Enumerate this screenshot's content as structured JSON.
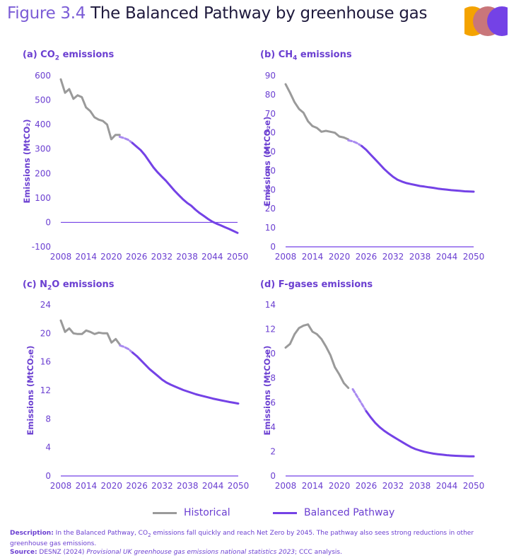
{
  "figure": {
    "number": "Figure 3.4",
    "title": "The Balanced Pathway by greenhouse gas"
  },
  "legend": {
    "historical": "Historical",
    "pathway": "Balanced Pathway"
  },
  "description": {
    "desc_label": "Description:",
    "desc_text_1": " In the Balanced Pathway, CO",
    "desc_sub": "2",
    "desc_text_2": " emissions fall quickly and reach Net Zero by 2045. The pathway also sees strong reductions in other greenhouse gas emissions.",
    "source_label": "Source:",
    "source_text_1": " DESNZ (2024) ",
    "source_italic": "Provisional UK greenhouse gas emissions national statistics 2023",
    "source_text_2": "; CCC analysis."
  },
  "colors": {
    "historical": "#9a9a9a",
    "pathway": "#7442e6",
    "pathway_light": "#a98af0",
    "axis": "#7442e6",
    "logo_orange": "#f4a300",
    "logo_rose": "#c9767a",
    "logo_purple": "#7442e6"
  },
  "chart_data": [
    {
      "type": "line",
      "id": "co2",
      "title_prefix": "(a) CO",
      "title_sub": "2",
      "title_suffix": " emissions",
      "ylabel": "Emissions (MtCO₂)",
      "ylim": [
        -100,
        600
      ],
      "yticks": [
        -100,
        0,
        100,
        200,
        300,
        400,
        500,
        600
      ],
      "xlim": [
        2008,
        2050
      ],
      "xticks": [
        2008,
        2014,
        2020,
        2026,
        2032,
        2038,
        2044,
        2050
      ],
      "grid": false,
      "series": [
        {
          "name": "Historical",
          "x": [
            2008,
            2009,
            2010,
            2011,
            2012,
            2013,
            2014,
            2015,
            2016,
            2017,
            2018,
            2019,
            2020,
            2021,
            2022
          ],
          "y": [
            585,
            530,
            545,
            505,
            520,
            512,
            470,
            455,
            430,
            420,
            415,
            400,
            340,
            358,
            358
          ]
        },
        {
          "name": "Balanced Pathway",
          "x": [
            2022,
            2023,
            2024,
            2025,
            2026,
            2027,
            2028,
            2029,
            2030,
            2031,
            2032,
            2033,
            2034,
            2035,
            2036,
            2037,
            2038,
            2039,
            2040,
            2041,
            2042,
            2043,
            2044,
            2045,
            2046,
            2047,
            2048,
            2049,
            2050
          ],
          "y": [
            350,
            345,
            338,
            325,
            310,
            295,
            275,
            250,
            225,
            205,
            187,
            170,
            150,
            130,
            112,
            95,
            80,
            68,
            52,
            38,
            26,
            14,
            3,
            -5,
            -12,
            -20,
            -27,
            -35,
            -43
          ]
        }
      ]
    },
    {
      "type": "line",
      "id": "ch4",
      "title_prefix": "(b) CH",
      "title_sub": "4",
      "title_suffix": " emissions",
      "ylabel": "Emissions (MtCO₂e)",
      "ylim": [
        0,
        90
      ],
      "yticks": [
        0,
        10,
        20,
        30,
        40,
        50,
        60,
        70,
        80,
        90
      ],
      "xlim": [
        2008,
        2050
      ],
      "xticks": [
        2008,
        2014,
        2020,
        2026,
        2032,
        2038,
        2044,
        2050
      ],
      "grid": false,
      "series": [
        {
          "name": "Historical",
          "x": [
            2008,
            2009,
            2010,
            2011,
            2012,
            2013,
            2014,
            2015,
            2016,
            2017,
            2018,
            2019,
            2020,
            2021,
            2022
          ],
          "y": [
            85.5,
            81,
            76,
            72.5,
            70.5,
            66,
            63.5,
            62.5,
            60.5,
            61,
            60.5,
            60,
            58,
            57.5,
            56.5
          ]
        },
        {
          "name": "Balanced Pathway",
          "x": [
            2022,
            2023,
            2024,
            2025,
            2026,
            2027,
            2028,
            2029,
            2030,
            2031,
            2032,
            2033,
            2034,
            2035,
            2036,
            2037,
            2038,
            2039,
            2040,
            2041,
            2042,
            2043,
            2044,
            2045,
            2046,
            2047,
            2048,
            2049,
            2050
          ],
          "y": [
            56,
            55.5,
            54.5,
            53,
            51,
            48.5,
            46,
            43.5,
            41,
            38.8,
            36.8,
            35.3,
            34.3,
            33.5,
            33,
            32.5,
            32,
            31.7,
            31.3,
            31,
            30.6,
            30.3,
            30.1,
            29.8,
            29.6,
            29.4,
            29.2,
            29.1,
            29
          ]
        }
      ]
    },
    {
      "type": "line",
      "id": "n2o",
      "title_prefix": "(c) N",
      "title_sub": "2",
      "title_suffix": "O emissions",
      "ylabel": "Emissions (MtCO₂e)",
      "ylim": [
        0,
        24
      ],
      "yticks": [
        0,
        4,
        8,
        12,
        16,
        20,
        24
      ],
      "xlim": [
        2008,
        2050
      ],
      "xticks": [
        2008,
        2014,
        2020,
        2026,
        2032,
        2038,
        2044,
        2050
      ],
      "grid": false,
      "series": [
        {
          "name": "Historical",
          "x": [
            2008,
            2009,
            2010,
            2011,
            2012,
            2013,
            2014,
            2015,
            2016,
            2017,
            2018,
            2019,
            2020,
            2021,
            2022
          ],
          "y": [
            21.8,
            20.2,
            20.7,
            20.0,
            19.9,
            19.9,
            20.4,
            20.2,
            19.9,
            20.1,
            20.0,
            20.0,
            18.7,
            19.2,
            18.4
          ]
        },
        {
          "name": "Balanced Pathway",
          "x": [
            2022,
            2023,
            2024,
            2025,
            2026,
            2027,
            2028,
            2029,
            2030,
            2031,
            2032,
            2033,
            2034,
            2035,
            2036,
            2037,
            2038,
            2039,
            2040,
            2041,
            2042,
            2043,
            2044,
            2045,
            2046,
            2047,
            2048,
            2049,
            2050
          ],
          "y": [
            18.3,
            18.1,
            17.8,
            17.3,
            16.8,
            16.2,
            15.6,
            15.0,
            14.5,
            14.0,
            13.5,
            13.1,
            12.8,
            12.55,
            12.3,
            12.05,
            11.85,
            11.65,
            11.45,
            11.3,
            11.15,
            11.0,
            10.85,
            10.72,
            10.6,
            10.48,
            10.36,
            10.26,
            10.16
          ]
        }
      ]
    },
    {
      "type": "line",
      "id": "fgas",
      "title_prefix": "(d) F-gases emissions",
      "title_sub": "",
      "title_suffix": "",
      "ylabel": "Emissions (MtCO₂e)",
      "ylim": [
        0,
        14
      ],
      "yticks": [
        0,
        2,
        4,
        6,
        8,
        10,
        12,
        14
      ],
      "xlim": [
        2008,
        2050
      ],
      "xticks": [
        2008,
        2014,
        2020,
        2026,
        2032,
        2038,
        2044,
        2050
      ],
      "grid": false,
      "series": [
        {
          "name": "Historical",
          "x": [
            2008,
            2009,
            2010,
            2011,
            2012,
            2013,
            2014,
            2015,
            2016,
            2017,
            2018,
            2019,
            2020,
            2021,
            2022
          ],
          "y": [
            10.5,
            10.8,
            11.6,
            12.1,
            12.3,
            12.4,
            11.8,
            11.6,
            11.2,
            10.6,
            9.9,
            8.9,
            8.3,
            7.6,
            7.2
          ]
        },
        {
          "name": "Balanced Pathway",
          "x": [
            2023,
            2024,
            2025,
            2026,
            2027,
            2028,
            2029,
            2030,
            2031,
            2032,
            2033,
            2034,
            2035,
            2036,
            2037,
            2038,
            2039,
            2040,
            2041,
            2042,
            2043,
            2044,
            2045,
            2046,
            2047,
            2048,
            2049,
            2050
          ],
          "y": [
            7.1,
            6.5,
            5.9,
            5.3,
            4.8,
            4.35,
            4.0,
            3.7,
            3.45,
            3.22,
            3.0,
            2.78,
            2.56,
            2.36,
            2.2,
            2.08,
            1.98,
            1.9,
            1.83,
            1.78,
            1.74,
            1.7,
            1.67,
            1.65,
            1.63,
            1.62,
            1.61,
            1.6
          ]
        }
      ]
    }
  ]
}
